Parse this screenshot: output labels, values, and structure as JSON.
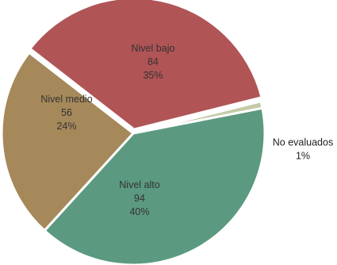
{
  "chart_data": {
    "type": "pie",
    "legend": "none",
    "slices": [
      {
        "name": "Nivel bajo",
        "value": 84,
        "percent": "35%",
        "value_label": "84",
        "color": "#b05456"
      },
      {
        "name": "No evaluados",
        "value": 2,
        "percent": "1%",
        "value_label": "",
        "color": "#c3cba6"
      },
      {
        "name": "Nivel alto",
        "value": 94,
        "percent": "40%",
        "value_label": "94",
        "color": "#5b9a80"
      },
      {
        "name": "Nivel medio",
        "value": 56,
        "percent": "24%",
        "value_label": "56",
        "color": "#a6895a"
      }
    ]
  }
}
